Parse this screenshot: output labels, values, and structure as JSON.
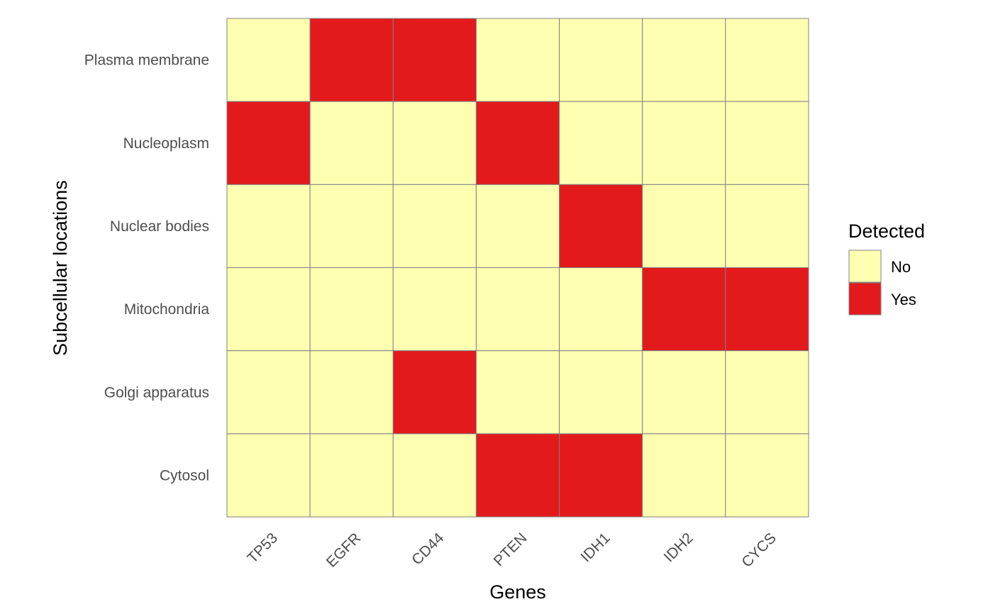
{
  "chart_data": {
    "type": "heatmap",
    "title": "",
    "xlabel": "Genes",
    "ylabel": "Subcellular locations",
    "x_categories": [
      "TP53",
      "EGFR",
      "CD44",
      "PTEN",
      "IDH1",
      "IDH2",
      "CYCS"
    ],
    "y_categories": [
      "Plasma membrane",
      "Nucleoplasm",
      "Nuclear bodies",
      "Mitochondria",
      "Golgi apparatus",
      "Cytosol"
    ],
    "values": [
      [
        "No",
        "Yes",
        "Yes",
        "No",
        "No",
        "No",
        "No"
      ],
      [
        "Yes",
        "No",
        "No",
        "Yes",
        "No",
        "No",
        "No"
      ],
      [
        "No",
        "No",
        "No",
        "No",
        "Yes",
        "No",
        "No"
      ],
      [
        "No",
        "No",
        "No",
        "No",
        "No",
        "Yes",
        "Yes"
      ],
      [
        "No",
        "No",
        "Yes",
        "No",
        "No",
        "No",
        "No"
      ],
      [
        "No",
        "No",
        "No",
        "Yes",
        "Yes",
        "No",
        "No"
      ]
    ],
    "legend": {
      "title": "Detected",
      "placement": "right",
      "entries": [
        {
          "label": "No",
          "color": "#FFFFB2"
        },
        {
          "label": "Yes",
          "color": "#E31A1C"
        }
      ]
    },
    "colors": {
      "No": "#FFFFB2",
      "Yes": "#E31A1C",
      "cell_border": "#808080",
      "tick_text": "#4D4D4D"
    },
    "grid": false
  }
}
